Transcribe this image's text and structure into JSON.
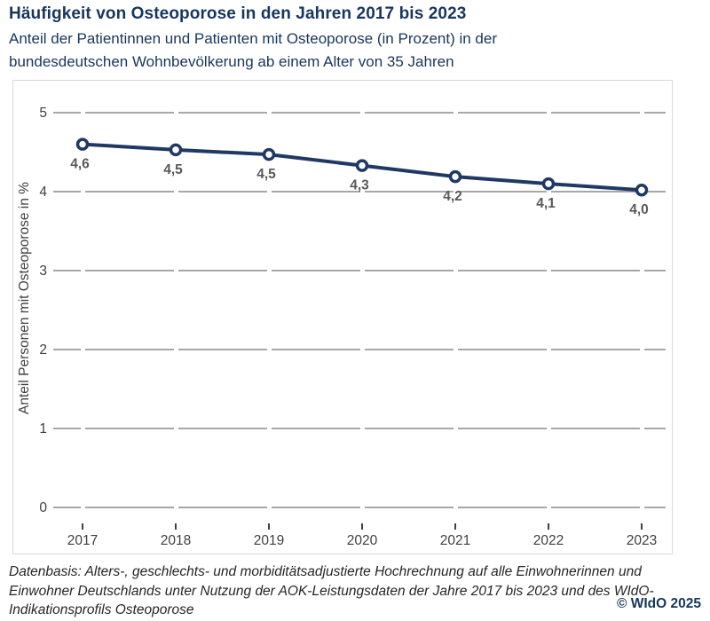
{
  "header": {
    "title": "Häufigkeit von Osteoporose in den Jahren 2017 bis 2023",
    "subtitle_lines": [
      "Anteil der Patientinnen und Patienten mit Osteoporose (in Prozent) in der",
      "bundesdeutschen Wohnbevölkerung ab einem Alter von 35 Jahren"
    ]
  },
  "chart_data": {
    "type": "line",
    "title": "Häufigkeit von Osteoporose in den Jahren 2017 bis 2023",
    "categories": [
      "2017",
      "2018",
      "2019",
      "2020",
      "2021",
      "2022",
      "2023"
    ],
    "series": [
      {
        "name": "Anteil Personen mit Osteoporose in %",
        "values": [
          4.6,
          4.5,
          4.5,
          4.3,
          4.2,
          4.1,
          4.0
        ],
        "point_labels": [
          "4,6",
          "4,5",
          "4,5",
          "4,3",
          "4,2",
          "4,1",
          "4,0"
        ],
        "precise_values": [
          4.6,
          4.53,
          4.47,
          4.33,
          4.19,
          4.1,
          4.02
        ],
        "marker": "open-circle"
      }
    ],
    "xlabel": "",
    "ylabel": "Anteil Personen mit Osteoporose in %",
    "ylim": [
      0,
      5
    ],
    "yticks": [
      0,
      1,
      2,
      3,
      4,
      5
    ],
    "grid": "horizontal-dashed",
    "legend": "none"
  },
  "footer": {
    "source_lines": [
      "Datenbasis: Alters-, geschlechts- und morbiditätsadjustierte Hochrechnung auf alle Einwohnerinnen und",
      "Einwohner Deutschlands unter Nutzung der AOK-Leistungsdaten der Jahre 2017 bis 2023 und des WIdO-",
      "Indikationsprofils Osteoporose"
    ],
    "copyright": "© WIdO 2025"
  },
  "colors": {
    "title_navy": "#17365d",
    "series_navy": "#1f3864",
    "data_label_gray": "#595959",
    "axis_text_gray": "#404040",
    "gridline_gray": "#8a8a8a",
    "box_border_gray": "#d9d9d9",
    "footer_text": "#262626"
  }
}
